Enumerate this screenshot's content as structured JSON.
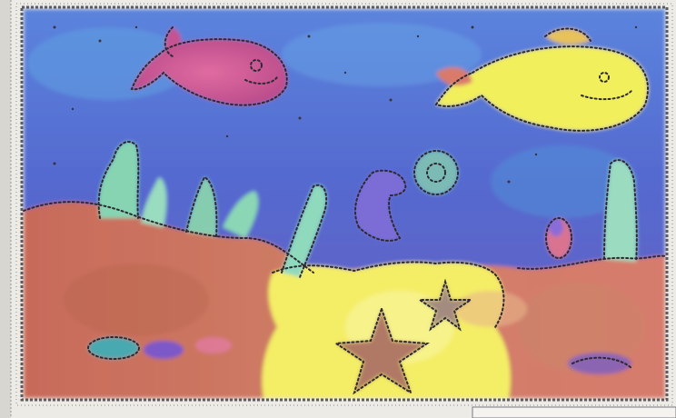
{
  "artwork": {
    "subject-icons": [
      "pink-fish-icon",
      "yellow-fish-icon",
      "seahorse-icon",
      "seaweed-icon",
      "starfish-icon",
      "small-fish-icon"
    ],
    "colors": {
      "paper": "#ecebe6",
      "frame": "#5a5a60",
      "water_top": "#4f76d6",
      "water_mid": "#5b66c9",
      "sand": "#f3ec60",
      "seabed": "#c8725c",
      "seaweed": "#7fd0a8",
      "pink_fish": "#d2508c",
      "yellow_fish": "#f1ef5a",
      "starfish": "#b47a60",
      "outline": "#2e2a33"
    }
  }
}
